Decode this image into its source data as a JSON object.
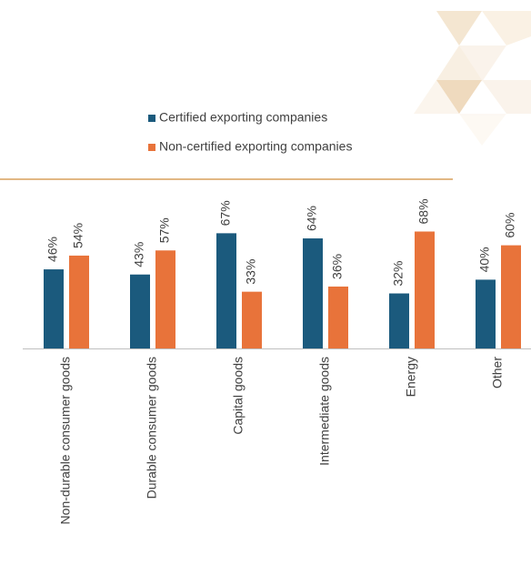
{
  "chart_data": {
    "type": "bar",
    "categories": [
      "Non-durable consumer goods",
      "Durable consumer goods",
      "Capital goods",
      "Intermediate goods",
      "Energy",
      "Other"
    ],
    "series": [
      {
        "name": "Certified exporting companies",
        "color": "#1b5a7d",
        "values": [
          46,
          43,
          67,
          64,
          32,
          40
        ],
        "value_labels": [
          "46%",
          "43%",
          "67%",
          "64%",
          "32%",
          "40%"
        ]
      },
      {
        "name": "Non-certified exporting companies",
        "color": "#e8733a",
        "values": [
          54,
          57,
          33,
          36,
          68,
          60
        ],
        "value_labels": [
          "54%",
          "57%",
          "33%",
          "36%",
          "68%",
          "60%"
        ]
      }
    ]
  }
}
